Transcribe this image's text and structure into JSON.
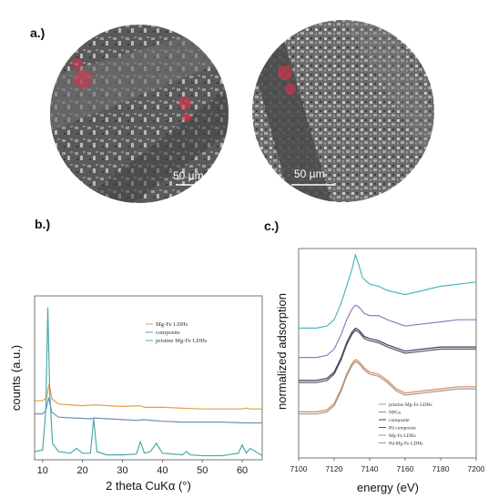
{
  "panels": {
    "a_label": "a.)",
    "b_label": "b.)",
    "c_label": "c.)"
  },
  "micrographs": [
    {
      "scale_bar": "50 µm",
      "highlight_color": "#e0304a"
    },
    {
      "scale_bar": "50 µm",
      "highlight_color": "#e0304a"
    }
  ],
  "chart_data": [
    {
      "type": "line",
      "xlabel": "2 theta CuKα (°)",
      "ylabel": "counts (a.u.)",
      "xlim": [
        8,
        65
      ],
      "xticks": [
        10,
        20,
        30,
        40,
        50,
        60
      ],
      "yticks": [],
      "grid": false,
      "legend_position": "top-center",
      "series": [
        {
          "name": "Mg-Fe LDHs",
          "color": "#e89a4a",
          "x": [
            8,
            10,
            11,
            11.6,
            12.4,
            14,
            20,
            23,
            30,
            34.5,
            35.5,
            40,
            45,
            50,
            55,
            60,
            61,
            62,
            65
          ],
          "y": [
            0.36,
            0.36,
            0.38,
            0.46,
            0.37,
            0.34,
            0.33,
            0.335,
            0.325,
            0.33,
            0.32,
            0.32,
            0.315,
            0.31,
            0.31,
            0.31,
            0.315,
            0.31,
            0.31
          ]
        },
        {
          "name": "composite",
          "color": "#6f8fb8",
          "x": [
            8,
            10,
            10.8,
            11.5,
            12.3,
            14,
            18,
            22,
            23,
            30,
            34,
            35,
            40,
            45,
            50,
            55,
            60,
            65
          ],
          "y": [
            0.28,
            0.28,
            0.3,
            0.38,
            0.29,
            0.26,
            0.255,
            0.25,
            0.255,
            0.245,
            0.24,
            0.245,
            0.235,
            0.23,
            0.23,
            0.23,
            0.225,
            0.225
          ]
        },
        {
          "name": "pristine Mg-Fe LDHs",
          "color": "#4fa8a8",
          "x": [
            8,
            10,
            10.8,
            11.3,
            11.8,
            12.5,
            14,
            17,
            18.5,
            20,
            22,
            22.8,
            23.6,
            26,
            30,
            33.5,
            34.5,
            35.5,
            37,
            38.5,
            40,
            45,
            46,
            47,
            50,
            55,
            59,
            60,
            61,
            62,
            65
          ],
          "y": [
            0.05,
            0.06,
            0.3,
            0.93,
            0.4,
            0.1,
            0.05,
            0.04,
            0.07,
            0.04,
            0.04,
            0.25,
            0.05,
            0.03,
            0.03,
            0.035,
            0.11,
            0.04,
            0.05,
            0.1,
            0.04,
            0.03,
            0.05,
            0.03,
            0.025,
            0.025,
            0.04,
            0.09,
            0.04,
            0.07,
            0.025
          ]
        }
      ]
    },
    {
      "type": "line",
      "xlabel": "energy (eV)",
      "ylabel": "normalized adsorption",
      "xlim": [
        7100,
        7200
      ],
      "xticks": [
        7100,
        7120,
        7140,
        7160,
        7180,
        7200
      ],
      "xtick_labels": [
        "7100",
        "7120",
        "7140",
        "7160",
        "7180",
        "7200"
      ],
      "yticks": [],
      "grid": false,
      "legend_position": "bottom-center",
      "series": [
        {
          "name": "pristine Mg-Fe LDHs",
          "color": "#4fb8b8",
          "x": [
            7100,
            7110,
            7116,
            7120,
            7124,
            7127,
            7130,
            7132,
            7134,
            7136,
            7140,
            7145,
            7150,
            7160,
            7170,
            7180,
            7190,
            7200
          ],
          "y": [
            0.62,
            0.62,
            0.63,
            0.66,
            0.74,
            0.82,
            0.9,
            0.97,
            0.92,
            0.86,
            0.83,
            0.82,
            0.8,
            0.78,
            0.8,
            0.82,
            0.83,
            0.84
          ]
        },
        {
          "name": "NPGs",
          "color": "#8b7ec4",
          "x": [
            7100,
            7110,
            7116,
            7120,
            7124,
            7127,
            7130,
            7132,
            7134,
            7137,
            7140,
            7145,
            7150,
            7160,
            7170,
            7180,
            7190,
            7200
          ],
          "y": [
            0.48,
            0.48,
            0.49,
            0.52,
            0.59,
            0.66,
            0.71,
            0.73,
            0.72,
            0.69,
            0.68,
            0.68,
            0.66,
            0.63,
            0.64,
            0.65,
            0.66,
            0.66
          ]
        },
        {
          "name": "composite",
          "color": "#3a3a6a",
          "x": [
            7100,
            7110,
            7116,
            7120,
            7124,
            7127,
            7130,
            7132,
            7134,
            7137,
            7140,
            7145,
            7150,
            7160,
            7170,
            7180,
            7190,
            7200
          ],
          "y": [
            0.37,
            0.37,
            0.38,
            0.41,
            0.48,
            0.55,
            0.6,
            0.62,
            0.61,
            0.58,
            0.57,
            0.56,
            0.54,
            0.51,
            0.52,
            0.53,
            0.53,
            0.53
          ]
        },
        {
          "name": "Pd composite",
          "color": "#555555",
          "x": [
            7100,
            7110,
            7116,
            7120,
            7124,
            7127,
            7130,
            7132,
            7134,
            7137,
            7140,
            7145,
            7150,
            7160,
            7170,
            7180,
            7190,
            7200
          ],
          "y": [
            0.36,
            0.36,
            0.37,
            0.4,
            0.47,
            0.54,
            0.59,
            0.61,
            0.6,
            0.57,
            0.56,
            0.55,
            0.53,
            0.5,
            0.51,
            0.52,
            0.52,
            0.52
          ]
        },
        {
          "name": "Mg-Fe LDHs",
          "color": "#e0884a",
          "x": [
            7100,
            7110,
            7116,
            7120,
            7124,
            7127,
            7130,
            7132,
            7134,
            7137,
            7140,
            7145,
            7150,
            7155,
            7160,
            7170,
            7180,
            7190,
            7200
          ],
          "y": [
            0.22,
            0.22,
            0.23,
            0.26,
            0.33,
            0.4,
            0.45,
            0.47,
            0.46,
            0.43,
            0.41,
            0.4,
            0.37,
            0.33,
            0.31,
            0.32,
            0.33,
            0.34,
            0.34
          ]
        },
        {
          "name": "Pd-Mg-Fe LDHs",
          "color": "#9a9a9a",
          "x": [
            7100,
            7110,
            7116,
            7120,
            7124,
            7127,
            7130,
            7132,
            7134,
            7137,
            7140,
            7145,
            7150,
            7155,
            7160,
            7170,
            7180,
            7190,
            7200
          ],
          "y": [
            0.21,
            0.21,
            0.22,
            0.25,
            0.32,
            0.39,
            0.44,
            0.46,
            0.45,
            0.42,
            0.4,
            0.39,
            0.36,
            0.32,
            0.3,
            0.31,
            0.32,
            0.33,
            0.33
          ]
        }
      ]
    }
  ]
}
